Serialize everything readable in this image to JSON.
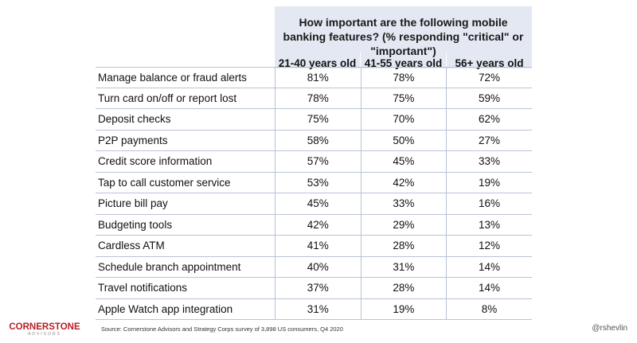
{
  "chart_data": {
    "type": "table",
    "title": "How important are the following mobile banking features? (% responding \"critical\" or \"important\")",
    "columns": [
      "21-40 years old",
      "41-55 years old",
      "56+ years old"
    ],
    "rows": [
      {
        "label": "Manage balance or fraud alerts",
        "values": [
          "81%",
          "78%",
          "72%"
        ]
      },
      {
        "label": "Turn card on/off or report lost",
        "values": [
          "78%",
          "75%",
          "59%"
        ]
      },
      {
        "label": "Deposit checks",
        "values": [
          "75%",
          "70%",
          "62%"
        ]
      },
      {
        "label": "P2P payments",
        "values": [
          "58%",
          "50%",
          "27%"
        ]
      },
      {
        "label": "Credit score information",
        "values": [
          "57%",
          "45%",
          "33%"
        ]
      },
      {
        "label": "Tap to call customer service",
        "values": [
          "53%",
          "42%",
          "19%"
        ]
      },
      {
        "label": "Picture bill pay",
        "values": [
          "45%",
          "33%",
          "16%"
        ]
      },
      {
        "label": "Budgeting tools",
        "values": [
          "42%",
          "29%",
          "13%"
        ]
      },
      {
        "label": "Cardless ATM",
        "values": [
          "41%",
          "28%",
          "12%"
        ]
      },
      {
        "label": "Schedule branch appointment",
        "values": [
          "40%",
          "31%",
          "14%"
        ]
      },
      {
        "label": "Travel notifications",
        "values": [
          "37%",
          "28%",
          "14%"
        ]
      },
      {
        "label": "Apple Watch app integration",
        "values": [
          "31%",
          "19%",
          "8%"
        ]
      }
    ]
  },
  "footer": {
    "logo_main": "CORNERSTONE",
    "logo_sub": "ADVISORS",
    "source": "Source: Cornerstone Advisors and Strategy Corps survey of 3,898 US consumers, Q4 2020",
    "handle": "@rshevlin"
  },
  "colors": {
    "header_bg": "#e3e8f2",
    "rule": "#b9c2d6",
    "logo_red": "#b81e24"
  }
}
